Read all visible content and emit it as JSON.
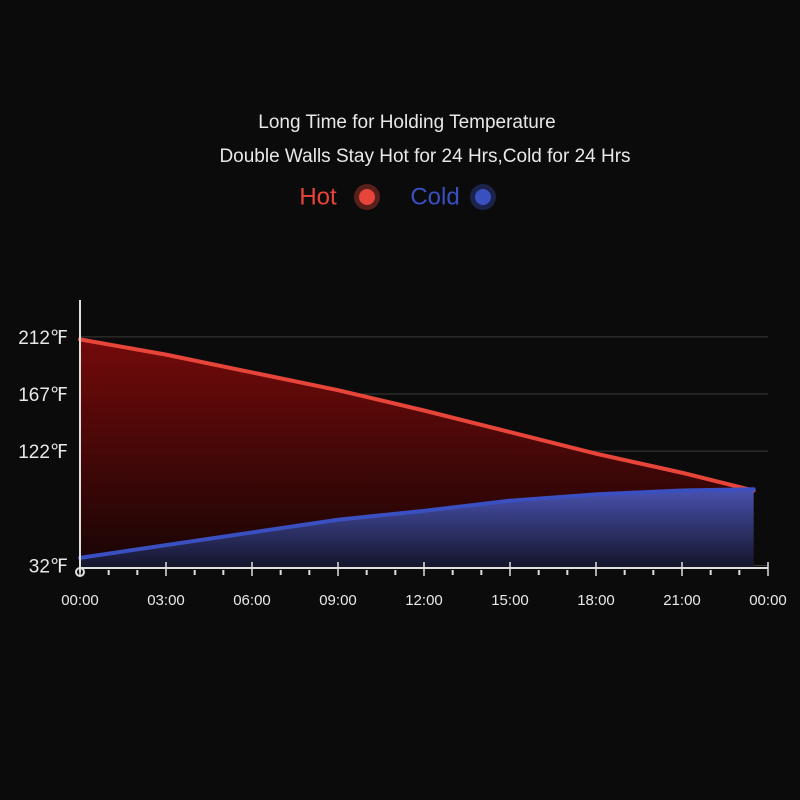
{
  "chart_data": {
    "type": "area",
    "title": "Long Time for Holding Temperature",
    "subtitle": "Double Walls Stay Hot for 24 Hrs,Cold for 24 Hrs",
    "x": [
      0,
      3,
      6,
      9,
      12,
      15,
      18,
      21,
      23.5
    ],
    "series": [
      {
        "name": "Hot",
        "color": "#e8453a",
        "values": [
          210,
          198,
          184,
          170,
          154,
          137,
          120,
          105,
          91
        ]
      },
      {
        "name": "Cold",
        "color": "#3a4fc0",
        "values": [
          38,
          48,
          58,
          68,
          75,
          83,
          88,
          91,
          92
        ]
      }
    ],
    "xlim": [
      0,
      24
    ],
    "xticks": [
      {
        "value": 0,
        "label": "00:00"
      },
      {
        "value": 3,
        "label": "03:00"
      },
      {
        "value": 6,
        "label": "06:00"
      },
      {
        "value": 9,
        "label": "09:00"
      },
      {
        "value": 12,
        "label": "12:00"
      },
      {
        "value": 15,
        "label": "15:00"
      },
      {
        "value": 18,
        "label": "18:00"
      },
      {
        "value": 21,
        "label": "21:00"
      },
      {
        "value": 24,
        "label": "00:00"
      }
    ],
    "ylim": [
      30,
      241
    ],
    "yticks": [
      {
        "value": 212,
        "label": "212℉"
      },
      {
        "value": 167,
        "label": "167℉"
      },
      {
        "value": 122,
        "label": "122℉"
      },
      {
        "value": 32,
        "label": "32℉"
      }
    ],
    "grid": true
  }
}
